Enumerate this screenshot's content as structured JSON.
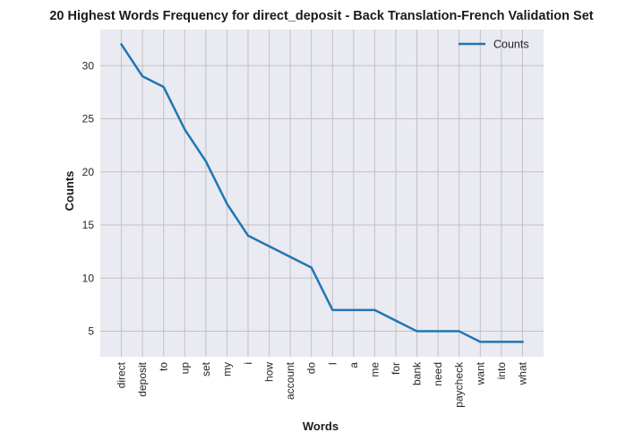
{
  "chart_data": {
    "type": "line",
    "title": "20 Highest Words Frequency for direct_deposit - Back Translation-French Validation Set",
    "xlabel": "Words",
    "ylabel": "Counts",
    "categories": [
      "direct",
      "deposit",
      "to",
      "up",
      "set",
      "my",
      "i",
      "how",
      "account",
      "do",
      "I",
      "a",
      "me",
      "for",
      "bank",
      "need",
      "paycheck",
      "want",
      "into",
      "what"
    ],
    "series": [
      {
        "name": "Counts",
        "values": [
          32,
          29,
          28,
          24,
          21,
          17,
          14,
          13,
          12,
          11,
          7,
          7,
          7,
          6,
          5,
          5,
          5,
          4,
          4,
          4
        ],
        "color": "#1f77b4"
      }
    ],
    "ylim": [
      2.6,
      33.4
    ],
    "yticks": [
      5,
      10,
      15,
      20,
      25,
      30
    ],
    "grid": true,
    "legend": "top-right",
    "background": "#eaeaf2",
    "grid_color": "#c0c0c4"
  }
}
